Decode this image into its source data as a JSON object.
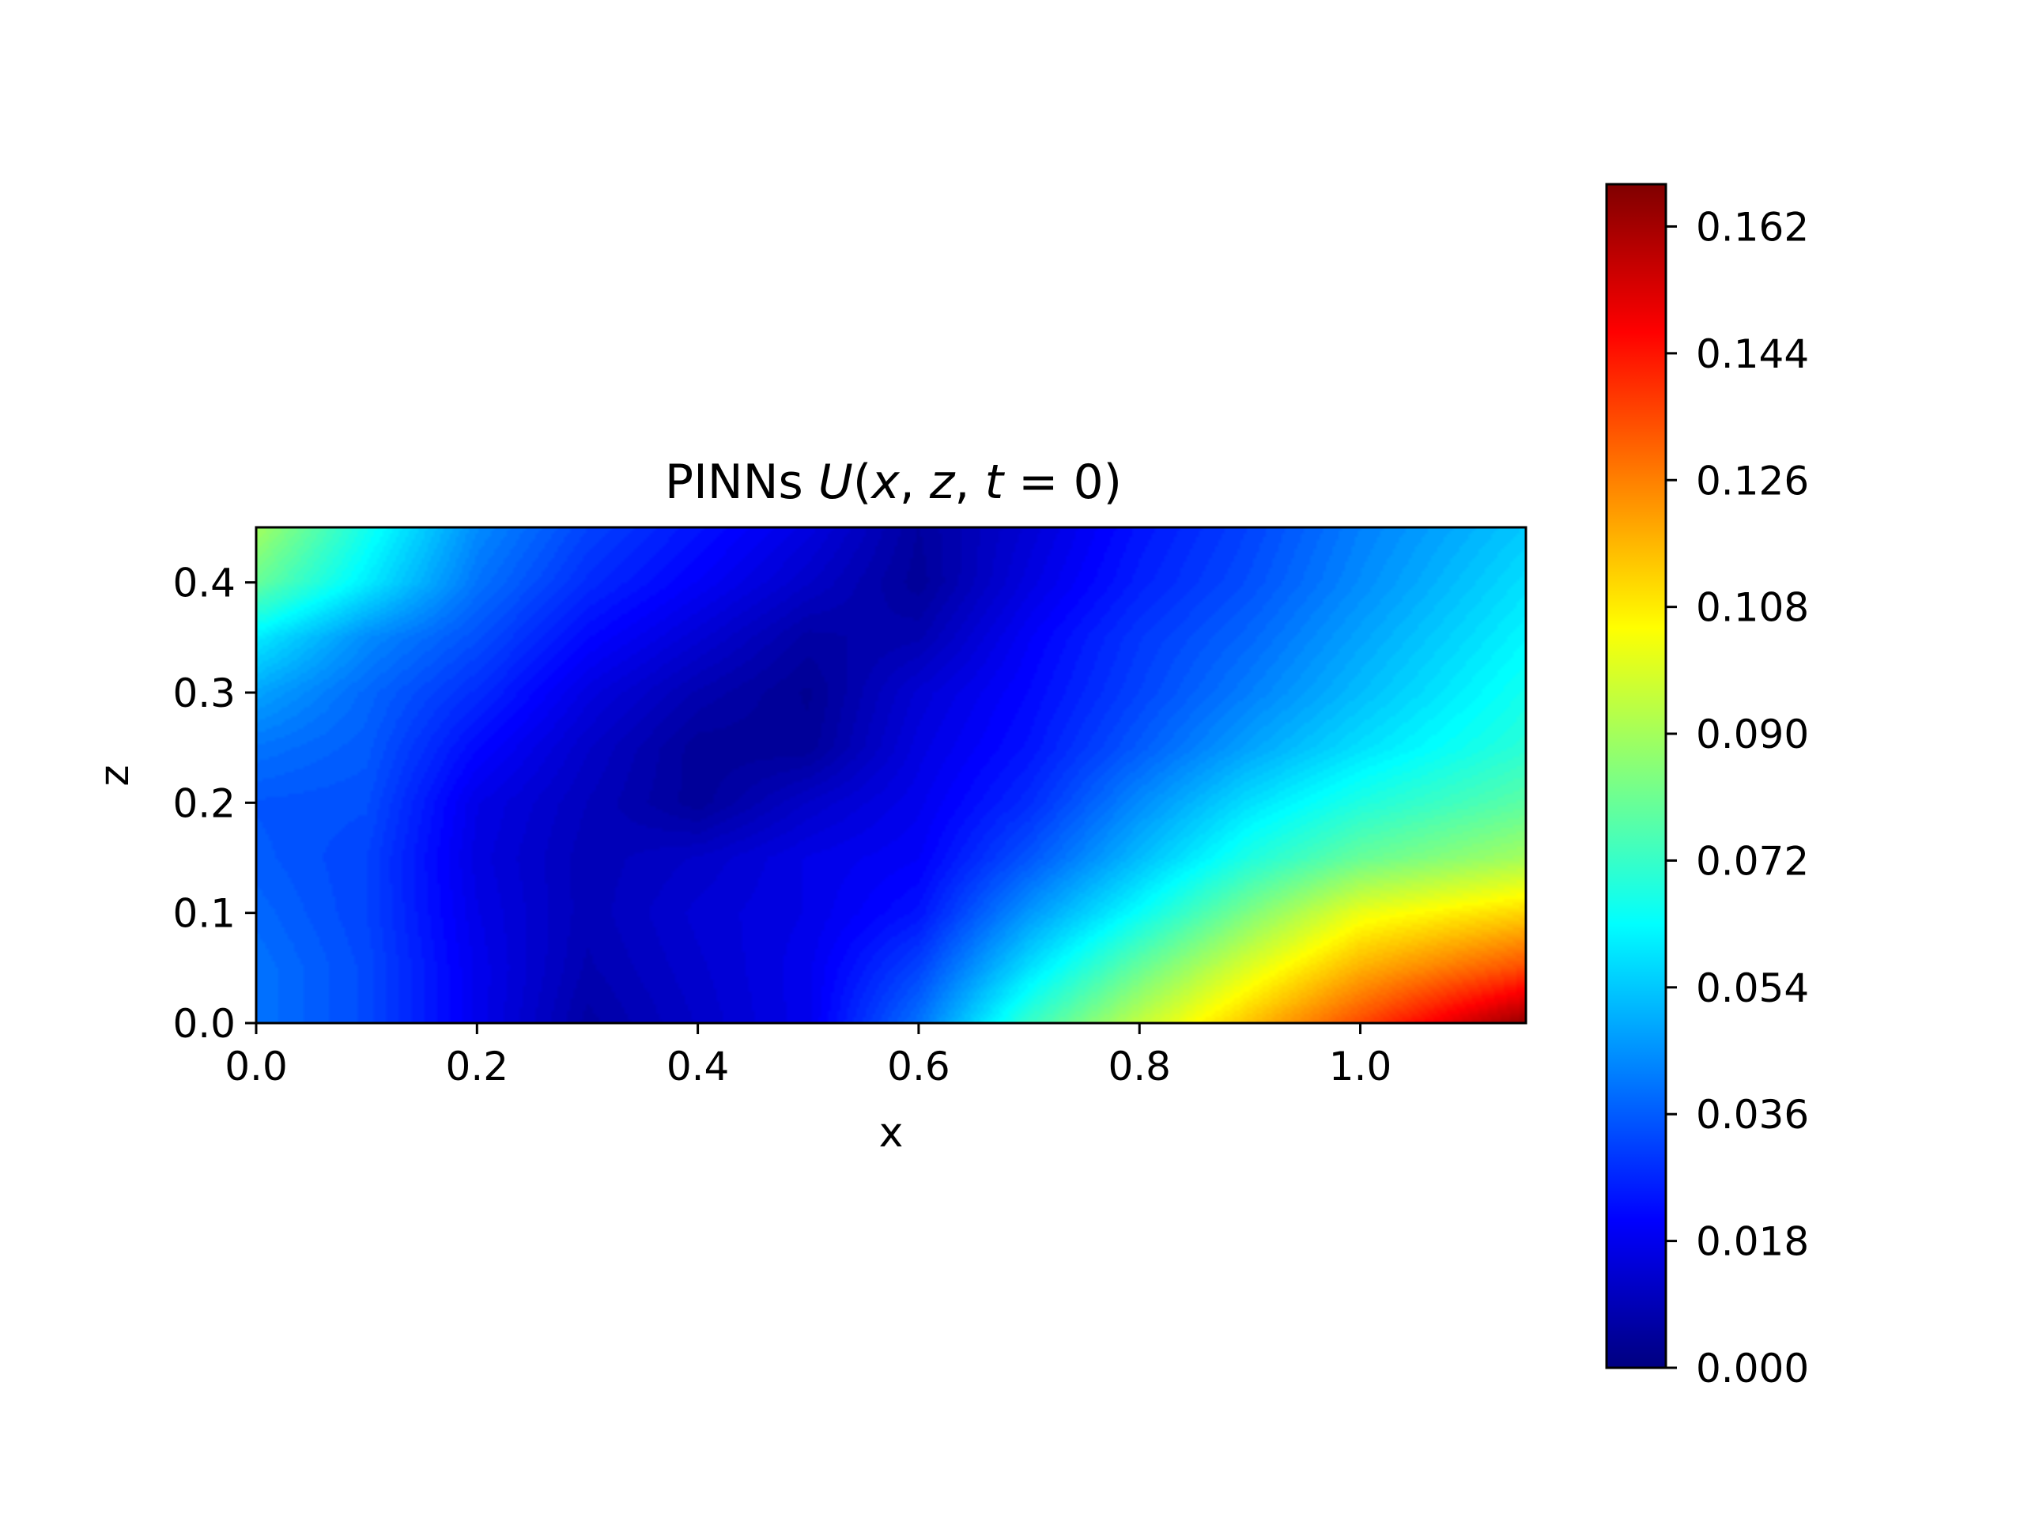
{
  "chart_data": {
    "type": "heatmap",
    "title": "PINNs U(x, z, t = 0)",
    "title_parts": {
      "prefix": "PINNs ",
      "func": "U",
      "open": "(",
      "x": "x",
      "sep1": ", ",
      "z": "z",
      "sep2": ", ",
      "t": "t",
      "eq": " = 0)"
    },
    "xlabel": "x",
    "ylabel": "z",
    "xlim": [
      0.0,
      1.15
    ],
    "ylim": [
      0.0,
      0.45
    ],
    "xticks": [
      0.0,
      0.2,
      0.4,
      0.6,
      0.8,
      1.0
    ],
    "xtick_labels": [
      "0.0",
      "0.2",
      "0.4",
      "0.6",
      "0.8",
      "1.0"
    ],
    "yticks": [
      0.0,
      0.1,
      0.2,
      0.3,
      0.4
    ],
    "ytick_labels": [
      "0.0",
      "0.1",
      "0.2",
      "0.3",
      "0.4"
    ],
    "colormap": "jet",
    "colorbar": {
      "range": [
        0.0,
        0.168
      ],
      "ticks": [
        0.0,
        0.018,
        0.036,
        0.054,
        0.072,
        0.09,
        0.108,
        0.126,
        0.144,
        0.162
      ],
      "tick_labels": [
        "0.000",
        "0.018",
        "0.036",
        "0.054",
        "0.072",
        "0.090",
        "0.108",
        "0.126",
        "0.144",
        "0.162"
      ],
      "placement": "right"
    },
    "x": [
      0.0,
      0.1,
      0.2,
      0.3,
      0.4,
      0.5,
      0.6,
      0.7,
      0.8,
      0.9,
      1.0,
      1.15
    ],
    "z": [
      0.0,
      0.05,
      0.1,
      0.15,
      0.2,
      0.25,
      0.3,
      0.35,
      0.4,
      0.45
    ],
    "values": [
      [
        0.04,
        0.033,
        0.018,
        0.006,
        0.012,
        0.018,
        0.04,
        0.072,
        0.095,
        0.115,
        0.135,
        0.165
      ],
      [
        0.04,
        0.033,
        0.018,
        0.008,
        0.013,
        0.018,
        0.032,
        0.058,
        0.08,
        0.1,
        0.118,
        0.135
      ],
      [
        0.038,
        0.032,
        0.017,
        0.009,
        0.014,
        0.017,
        0.024,
        0.046,
        0.064,
        0.084,
        0.102,
        0.112
      ],
      [
        0.036,
        0.032,
        0.016,
        0.009,
        0.012,
        0.017,
        0.02,
        0.035,
        0.052,
        0.068,
        0.08,
        0.09
      ],
      [
        0.035,
        0.034,
        0.017,
        0.01,
        0.004,
        0.012,
        0.018,
        0.028,
        0.044,
        0.058,
        0.068,
        0.078
      ],
      [
        0.04,
        0.036,
        0.022,
        0.012,
        0.004,
        0.004,
        0.016,
        0.024,
        0.036,
        0.048,
        0.058,
        0.07
      ],
      [
        0.048,
        0.038,
        0.028,
        0.016,
        0.008,
        0.003,
        0.014,
        0.022,
        0.032,
        0.042,
        0.052,
        0.066
      ],
      [
        0.06,
        0.044,
        0.034,
        0.022,
        0.014,
        0.006,
        0.008,
        0.02,
        0.03,
        0.038,
        0.048,
        0.062
      ],
      [
        0.08,
        0.06,
        0.04,
        0.028,
        0.02,
        0.012,
        0.004,
        0.016,
        0.026,
        0.034,
        0.044,
        0.058
      ],
      [
        0.09,
        0.066,
        0.044,
        0.032,
        0.024,
        0.016,
        0.005,
        0.014,
        0.024,
        0.032,
        0.042,
        0.054
      ]
    ]
  }
}
